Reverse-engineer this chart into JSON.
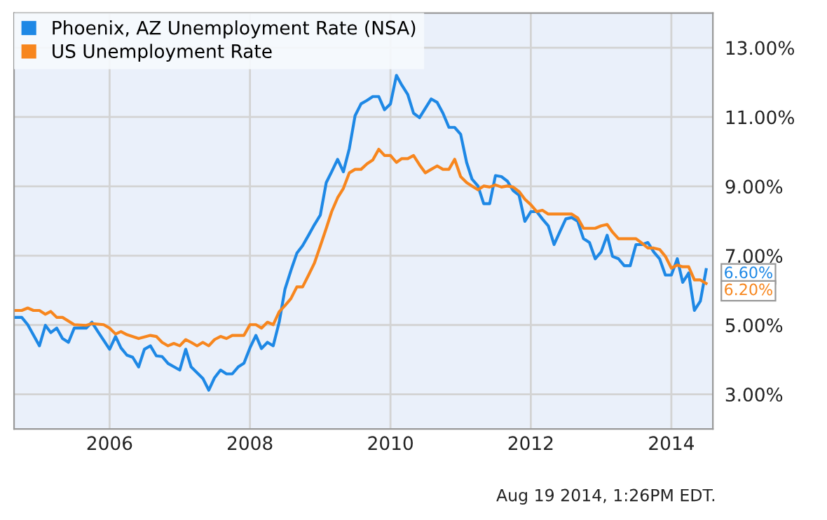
{
  "chart_data": {
    "type": "line",
    "xlim": [
      "2004-08-22",
      "2014-08-05"
    ],
    "xticks": [
      {
        "value": "2006-01-01",
        "label": "2006"
      },
      {
        "value": "2008-01-01",
        "label": "2008"
      },
      {
        "value": "2010-01-01",
        "label": "2010"
      },
      {
        "value": "2012-01-01",
        "label": "2012"
      },
      {
        "value": "2014-01-01",
        "label": "2014"
      }
    ],
    "ylim": [
      2,
      14
    ],
    "yticks": [
      {
        "value": 3,
        "label": "3.00%"
      },
      {
        "value": 5,
        "label": "5.00%"
      },
      {
        "value": 7,
        "label": "7.00%"
      },
      {
        "value": 9,
        "label": "9.00%"
      },
      {
        "value": 11,
        "label": "11.00%"
      },
      {
        "value": 13,
        "label": "13.00%"
      }
    ],
    "grid": true,
    "legend": "top left",
    "series": [
      {
        "name": "Phoenix, AZ Unemployment Rate (NSA)",
        "color": "#1e88e5",
        "x": [
          "2004-09",
          "2004-10",
          "2004-11",
          "2005-01",
          "2005-02",
          "2005-03",
          "2005-04",
          "2005-05",
          "2005-06",
          "2005-07",
          "2005-09",
          "2005-10",
          "2005-11",
          "2006-01",
          "2006-02",
          "2006-03",
          "2006-04",
          "2006-05",
          "2006-06",
          "2006-07",
          "2006-08",
          "2006-09",
          "2006-10",
          "2006-11",
          "2007-01",
          "2007-02",
          "2007-03",
          "2007-05",
          "2007-06",
          "2007-07",
          "2007-08",
          "2007-09",
          "2007-10",
          "2007-11",
          "2007-12",
          "2008-01",
          "2008-02",
          "2008-03",
          "2008-04",
          "2008-05",
          "2008-06",
          "2008-07",
          "2008-08",
          "2008-09",
          "2008-10",
          "2008-11",
          "2008-12",
          "2009-01",
          "2009-02",
          "2009-03",
          "2009-04",
          "2009-05",
          "2009-06",
          "2009-07",
          "2009-08",
          "2009-09",
          "2009-10",
          "2009-11",
          "2009-12",
          "2010-01",
          "2010-02",
          "2010-03",
          "2010-04",
          "2010-05",
          "2010-06",
          "2010-08",
          "2010-09",
          "2010-10",
          "2010-11",
          "2010-12",
          "2011-01",
          "2011-02",
          "2011-03",
          "2011-04",
          "2011-05",
          "2011-06",
          "2011-07",
          "2011-08",
          "2011-09",
          "2011-10",
          "2011-11",
          "2011-12",
          "2012-01",
          "2012-02",
          "2012-03",
          "2012-04",
          "2012-05",
          "2012-06",
          "2012-07",
          "2012-08",
          "2012-09",
          "2012-10",
          "2012-11",
          "2012-12",
          "2013-01",
          "2013-02",
          "2013-03",
          "2013-04",
          "2013-05",
          "2013-06",
          "2013-07",
          "2013-08",
          "2013-09",
          "2013-10",
          "2013-11",
          "2013-12",
          "2014-01",
          "2014-02",
          "2014-03",
          "2014-04",
          "2014-05",
          "2014-06",
          "2014-07"
        ],
        "values": [
          5.22,
          5.22,
          5.01,
          4.4,
          4.99,
          4.78,
          4.91,
          4.61,
          4.5,
          4.91,
          4.91,
          5.08,
          4.81,
          4.3,
          4.67,
          4.34,
          4.13,
          4.07,
          3.79,
          4.3,
          4.4,
          4.11,
          4.09,
          3.89,
          3.7,
          4.3,
          3.79,
          3.46,
          3.12,
          3.48,
          3.7,
          3.59,
          3.59,
          3.79,
          3.9,
          4.34,
          4.7,
          4.32,
          4.5,
          4.4,
          5.08,
          6.03,
          6.57,
          7.07,
          7.29,
          7.59,
          7.89,
          8.17,
          9.11,
          9.42,
          9.78,
          9.42,
          10.09,
          11.04,
          11.38,
          11.48,
          11.59,
          11.59,
          11.21,
          11.38,
          12.2,
          11.92,
          11.65,
          11.11,
          10.98,
          11.52,
          11.42,
          11.11,
          10.7,
          10.7,
          10.5,
          9.69,
          9.21,
          9.01,
          8.5,
          8.5,
          9.31,
          9.28,
          9.15,
          8.88,
          8.74,
          7.99,
          8.27,
          8.27,
          8.06,
          7.86,
          7.32,
          7.7,
          8.06,
          8.1,
          7.99,
          7.49,
          7.38,
          6.91,
          7.11,
          7.59,
          6.98,
          6.91,
          6.71,
          6.71,
          7.32,
          7.32,
          7.38,
          7.11,
          6.91,
          6.44,
          6.44,
          6.91,
          6.23,
          6.5,
          5.42,
          5.69,
          6.6
        ]
      },
      {
        "name": "US Unemployment Rate",
        "color": "#f7861e",
        "x": [
          "2004-09",
          "2004-10",
          "2004-11",
          "2004-12",
          "2005-01",
          "2005-02",
          "2005-03",
          "2005-04",
          "2005-05",
          "2005-07",
          "2005-09",
          "2005-10",
          "2005-12",
          "2006-01",
          "2006-02",
          "2006-03",
          "2006-04",
          "2006-06",
          "2006-08",
          "2006-09",
          "2006-10",
          "2006-11",
          "2006-12",
          "2007-01",
          "2007-02",
          "2007-03",
          "2007-04",
          "2007-05",
          "2007-06",
          "2007-07",
          "2007-08",
          "2007-09",
          "2007-10",
          "2007-12",
          "2008-01",
          "2008-02",
          "2008-03",
          "2008-04",
          "2008-05",
          "2008-06",
          "2008-07",
          "2008-08",
          "2008-09",
          "2008-10",
          "2008-11",
          "2008-12",
          "2009-01",
          "2009-02",
          "2009-03",
          "2009-04",
          "2009-05",
          "2009-06",
          "2009-07",
          "2009-08",
          "2009-09",
          "2009-10",
          "2009-11",
          "2009-12",
          "2010-01",
          "2010-02",
          "2010-03",
          "2010-04",
          "2010-05",
          "2010-06",
          "2010-07",
          "2010-08",
          "2010-09",
          "2010-10",
          "2010-11",
          "2010-12",
          "2011-01",
          "2011-02",
          "2011-03",
          "2011-04",
          "2011-05",
          "2011-06",
          "2011-07",
          "2011-08",
          "2011-09",
          "2011-10",
          "2011-11",
          "2011-12",
          "2012-01",
          "2012-02",
          "2012-03",
          "2012-04",
          "2012-05",
          "2012-06",
          "2012-07",
          "2012-08",
          "2012-09",
          "2012-10",
          "2012-11",
          "2012-12",
          "2013-01",
          "2013-02",
          "2013-03",
          "2013-04",
          "2013-05",
          "2013-06",
          "2013-07",
          "2013-08",
          "2013-09",
          "2013-10",
          "2013-11",
          "2013-12",
          "2014-01",
          "2014-02",
          "2014-03",
          "2014-04",
          "2014-05",
          "2014-06",
          "2014-07"
        ],
        "values": [
          5.42,
          5.42,
          5.49,
          5.42,
          5.42,
          5.31,
          5.39,
          5.22,
          5.22,
          5.01,
          4.99,
          5.04,
          5.01,
          4.91,
          4.74,
          4.81,
          4.72,
          4.61,
          4.7,
          4.67,
          4.5,
          4.4,
          4.47,
          4.4,
          4.58,
          4.5,
          4.4,
          4.5,
          4.4,
          4.58,
          4.67,
          4.61,
          4.7,
          4.7,
          5.01,
          5.01,
          4.91,
          5.08,
          5.01,
          5.38,
          5.56,
          5.76,
          6.1,
          6.1,
          6.44,
          6.78,
          7.28,
          7.79,
          8.27,
          8.67,
          8.94,
          9.39,
          9.49,
          9.49,
          9.65,
          9.76,
          10.07,
          9.89,
          9.89,
          9.69,
          9.8,
          9.8,
          9.89,
          9.62,
          9.39,
          9.49,
          9.59,
          9.49,
          9.49,
          9.78,
          9.28,
          9.11,
          9.01,
          8.9,
          9.01,
          8.98,
          9.04,
          8.98,
          9.01,
          8.98,
          8.85,
          8.63,
          8.47,
          8.27,
          8.31,
          8.2,
          8.2,
          8.2,
          8.2,
          8.2,
          8.09,
          7.79,
          7.79,
          7.79,
          7.86,
          7.9,
          7.68,
          7.49,
          7.49,
          7.49,
          7.49,
          7.36,
          7.22,
          7.22,
          7.18,
          6.98,
          6.64,
          6.73,
          6.68,
          6.68,
          6.3,
          6.3,
          6.2
        ]
      }
    ],
    "annotations": [
      {
        "text": "6.60%",
        "x": "2014-07",
        "y": 6.6
      },
      {
        "text": "6.20%",
        "x": "2014-07",
        "y": 6.2
      },
      "Aug 19 2014, 1:26PM EDT."
    ]
  }
}
